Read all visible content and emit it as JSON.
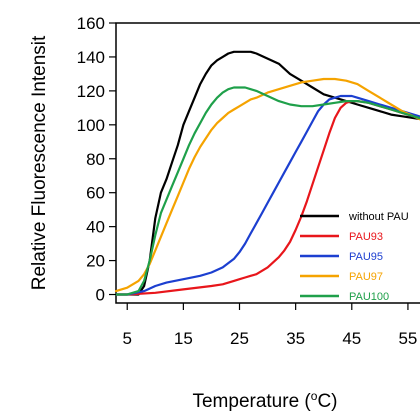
{
  "chart_data": {
    "type": "line",
    "title": "",
    "xlabel": "Temperature (",
    "xlabel_sup": "o",
    "xlabel_unit": "C)",
    "ylabel": "Relative Fluorescence Intensit",
    "xlim": [
      3,
      60
    ],
    "ylim": [
      -5,
      160
    ],
    "xticks": [
      5,
      15,
      25,
      35,
      45,
      55
    ],
    "yticks": [
      0,
      20,
      40,
      60,
      80,
      100,
      120,
      140,
      160
    ],
    "grid": false,
    "legend_position": "lower-right",
    "series": [
      {
        "name": "without PAU",
        "color": "#000000",
        "x": [
          3,
          5,
          7,
          8,
          9,
          10,
          11,
          12,
          13,
          14,
          15,
          16,
          17,
          18,
          19,
          20,
          21,
          22,
          23,
          24,
          25,
          26,
          27,
          28,
          30,
          32,
          34,
          36,
          38,
          40,
          42,
          44,
          46,
          48,
          50,
          52,
          54,
          56,
          58,
          60
        ],
        "y": [
          0,
          0,
          0,
          5,
          20,
          45,
          60,
          68,
          78,
          88,
          100,
          108,
          116,
          124,
          130,
          135,
          138,
          140,
          142,
          143,
          143,
          143,
          143,
          142,
          139,
          136,
          130,
          126,
          122,
          118,
          116,
          114,
          112,
          110,
          108,
          106,
          105,
          104,
          103,
          100
        ]
      },
      {
        "name": "PAU93",
        "color": "#e8161b",
        "x": [
          3,
          5,
          10,
          15,
          20,
          22,
          24,
          25,
          26,
          27,
          28,
          29,
          30,
          31,
          32,
          33,
          34,
          35,
          36,
          37,
          38,
          39,
          40,
          41,
          42,
          43,
          44,
          45,
          46,
          48,
          50,
          52,
          54,
          56,
          58,
          60
        ],
        "y": [
          0,
          0,
          1,
          3,
          5,
          6,
          8,
          9,
          10,
          11,
          12,
          14,
          16,
          19,
          22,
          26,
          31,
          38,
          46,
          55,
          65,
          75,
          85,
          95,
          104,
          110,
          113,
          114,
          114,
          113,
          111,
          109,
          107,
          105,
          103,
          100
        ]
      },
      {
        "name": "PAU95",
        "color": "#1c3fd0",
        "x": [
          3,
          5,
          8,
          10,
          12,
          15,
          18,
          20,
          22,
          24,
          25,
          26,
          27,
          28,
          29,
          30,
          31,
          32,
          33,
          34,
          35,
          36,
          37,
          38,
          39,
          40,
          41,
          42,
          43,
          44,
          45,
          46,
          48,
          50,
          52,
          54,
          56,
          58,
          60
        ],
        "y": [
          0,
          0,
          2,
          5,
          7,
          9,
          11,
          13,
          16,
          21,
          25,
          30,
          36,
          42,
          48,
          54,
          60,
          66,
          72,
          78,
          84,
          90,
          96,
          102,
          108,
          112,
          115,
          116,
          117,
          117,
          117,
          116,
          114,
          112,
          110,
          108,
          106,
          104,
          102
        ]
      },
      {
        "name": "PAU97",
        "color": "#f5a300",
        "x": [
          3,
          5,
          7,
          8,
          9,
          10,
          11,
          12,
          13,
          14,
          15,
          16,
          17,
          18,
          19,
          20,
          21,
          22,
          23,
          24,
          25,
          26,
          27,
          28,
          30,
          32,
          34,
          36,
          38,
          40,
          42,
          44,
          46,
          48,
          50,
          52,
          54,
          56,
          58,
          60
        ],
        "y": [
          2,
          4,
          8,
          12,
          18,
          26,
          34,
          42,
          50,
          58,
          66,
          74,
          81,
          87,
          92,
          97,
          101,
          104,
          107,
          109,
          111,
          113,
          115,
          116,
          119,
          121,
          123,
          125,
          126,
          127,
          127,
          126,
          124,
          120,
          116,
          112,
          108,
          105,
          102,
          100
        ]
      },
      {
        "name": "PAU100",
        "color": "#1fa04a",
        "x": [
          3,
          5,
          7,
          8,
          9,
          10,
          11,
          12,
          13,
          14,
          15,
          16,
          17,
          18,
          19,
          20,
          21,
          22,
          23,
          24,
          25,
          26,
          27,
          28,
          30,
          32,
          34,
          36,
          38,
          40,
          42,
          44,
          46,
          48,
          50,
          52,
          54,
          56,
          58,
          60
        ],
        "y": [
          0,
          0,
          2,
          8,
          20,
          35,
          48,
          56,
          64,
          72,
          80,
          88,
          95,
          101,
          107,
          112,
          116,
          119,
          121,
          122,
          122,
          122,
          121,
          120,
          117,
          114,
          112,
          111,
          111,
          112,
          113,
          114,
          114,
          113,
          111,
          109,
          107,
          105,
          103,
          100
        ]
      }
    ]
  }
}
